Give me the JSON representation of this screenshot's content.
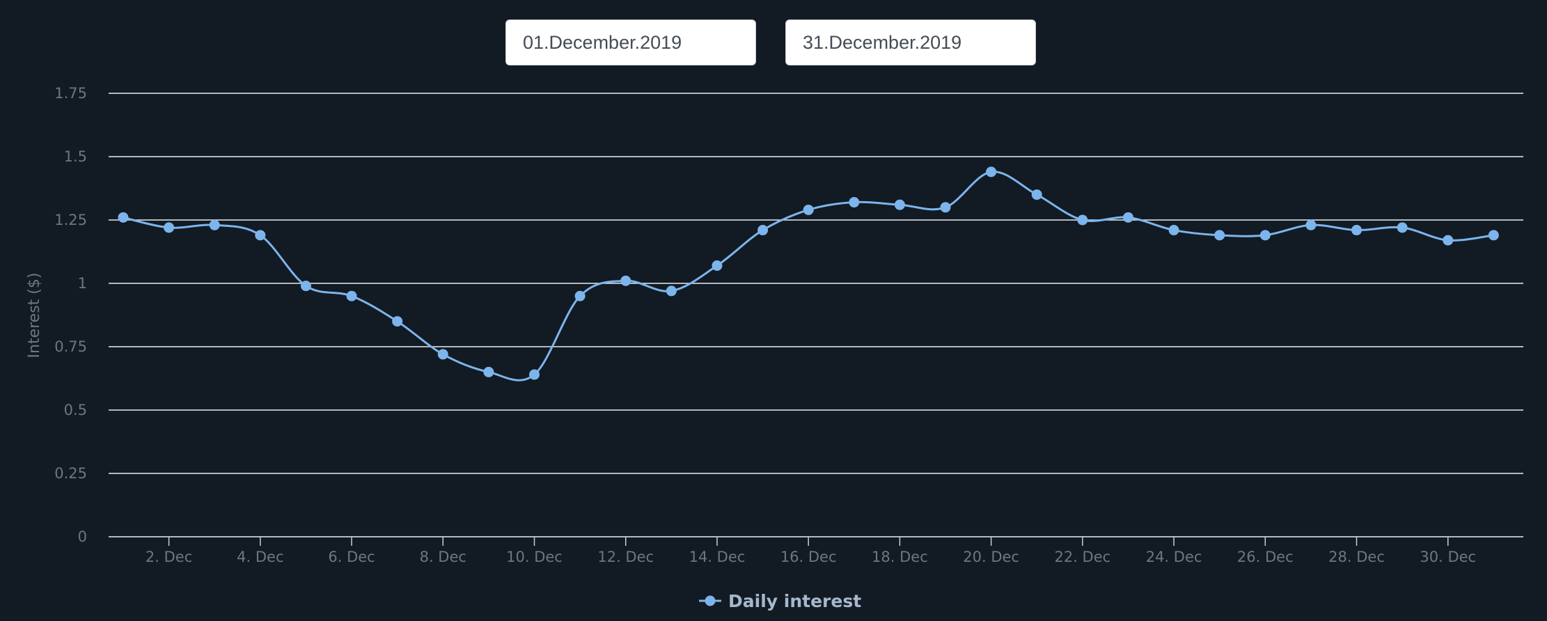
{
  "date_range": {
    "start": "01.December.2019",
    "end": "31.December.2019"
  },
  "colors": {
    "background": "#121a23",
    "series": "#7cb5ec",
    "grid": "#e9edf2"
  },
  "chart_data": {
    "type": "line",
    "title": "",
    "xlabel": "",
    "ylabel": "Interest ($)",
    "ylim": [
      0,
      1.75
    ],
    "yticks": [
      0,
      0.25,
      0.5,
      0.75,
      1,
      1.25,
      1.5,
      1.75
    ],
    "ytick_labels": [
      "0",
      "0.25",
      "0.5",
      "0.75",
      "1",
      "1.25",
      "1.5",
      "1.75"
    ],
    "xticks": [
      2,
      4,
      6,
      8,
      10,
      12,
      14,
      16,
      18,
      20,
      22,
      24,
      26,
      28,
      30
    ],
    "xtick_labels": [
      "2. Dec",
      "4. Dec",
      "6. Dec",
      "8. Dec",
      "10. Dec",
      "12. Dec",
      "14. Dec",
      "16. Dec",
      "18. Dec",
      "20. Dec",
      "22. Dec",
      "24. Dec",
      "26. Dec",
      "28. Dec",
      "30. Dec"
    ],
    "grid": true,
    "legend_position": "bottom-center",
    "x": [
      "2019-12-01",
      "2019-12-02",
      "2019-12-03",
      "2019-12-04",
      "2019-12-05",
      "2019-12-06",
      "2019-12-07",
      "2019-12-08",
      "2019-12-09",
      "2019-12-10",
      "2019-12-11",
      "2019-12-12",
      "2019-12-13",
      "2019-12-14",
      "2019-12-15",
      "2019-12-16",
      "2019-12-17",
      "2019-12-18",
      "2019-12-19",
      "2019-12-20",
      "2019-12-21",
      "2019-12-22",
      "2019-12-23",
      "2019-12-24",
      "2019-12-25",
      "2019-12-26",
      "2019-12-27",
      "2019-12-28",
      "2019-12-29",
      "2019-12-30",
      "2019-12-31"
    ],
    "series": [
      {
        "name": "Daily interest",
        "values": [
          1.26,
          1.22,
          1.23,
          1.19,
          0.99,
          0.95,
          0.85,
          0.72,
          0.65,
          0.64,
          0.95,
          1.01,
          0.97,
          1.07,
          1.21,
          1.29,
          1.32,
          1.31,
          1.3,
          1.44,
          1.35,
          1.25,
          1.26,
          1.21,
          1.19,
          1.19,
          1.23,
          1.21,
          1.22,
          1.17,
          1.19
        ]
      }
    ]
  }
}
